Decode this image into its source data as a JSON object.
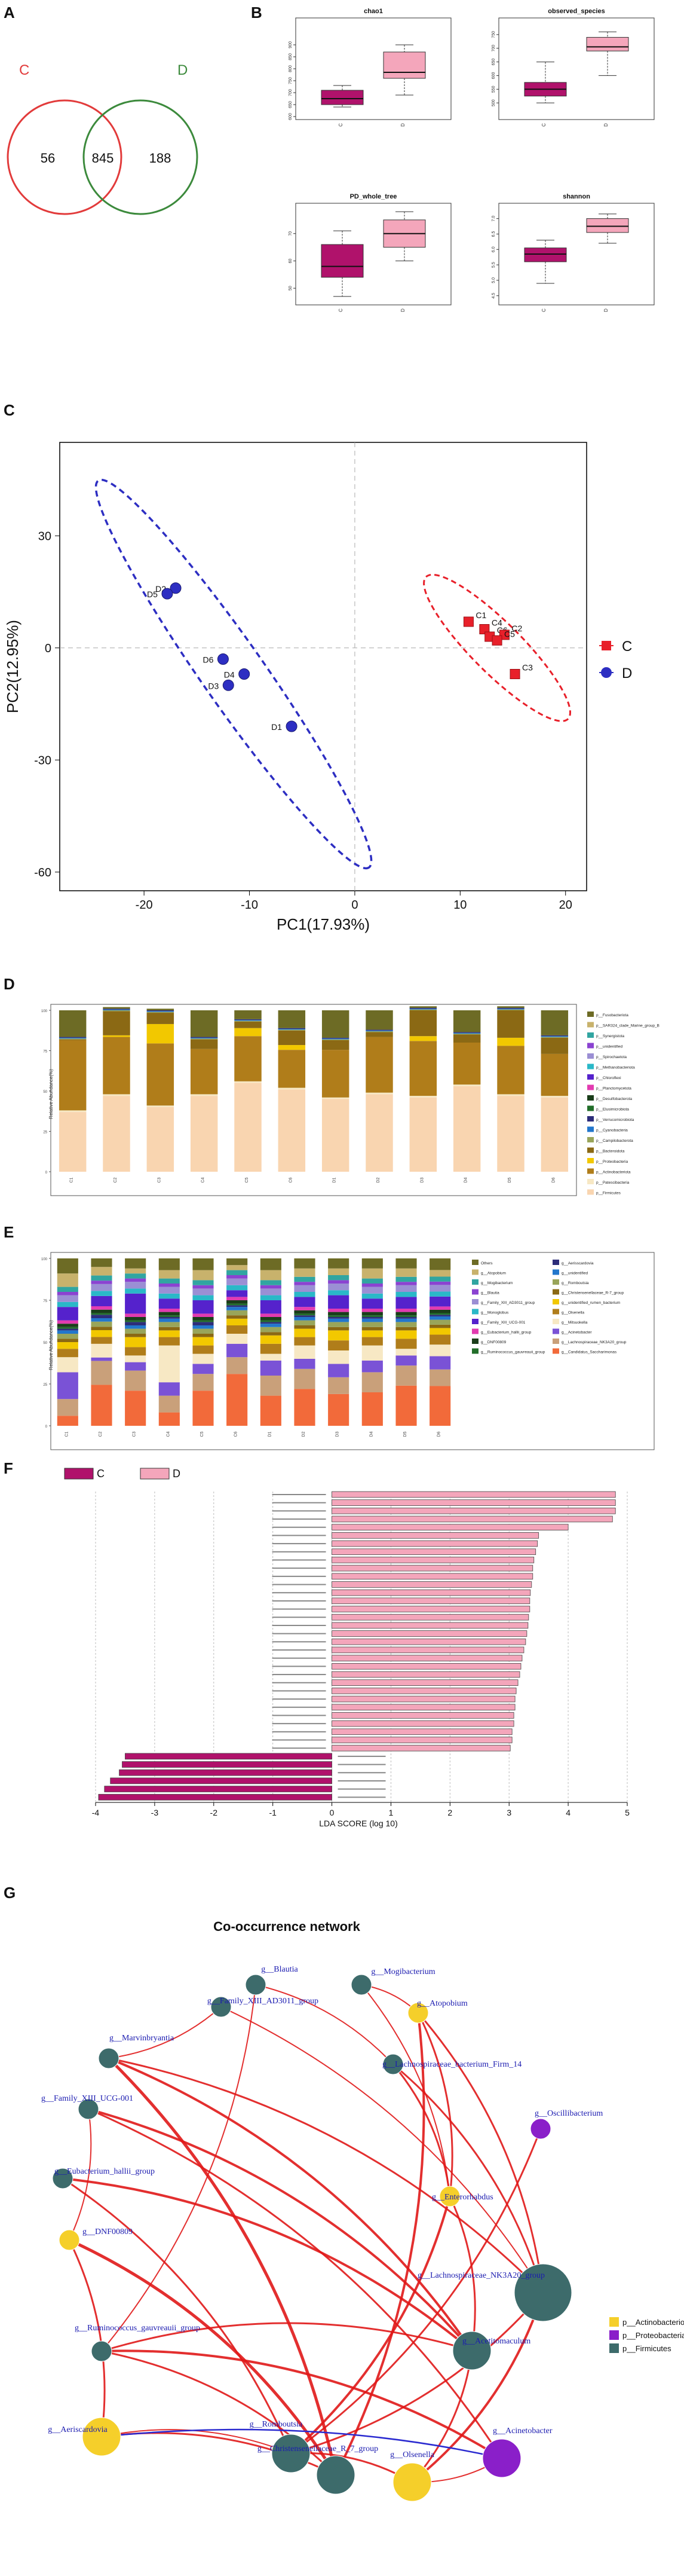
{
  "panels": {
    "A": {
      "letter": "A",
      "labels": {
        "left": "C",
        "right": "D"
      },
      "values": {
        "only_left": "56",
        "shared": "845",
        "only_right": "188"
      },
      "colors": {
        "left": "#e23b3b",
        "right": "#3c8a3c"
      }
    },
    "B": {
      "letter": "B",
      "colors": {
        "C": "#b0126b",
        "D": "#f4a6bb"
      },
      "plots": [
        {
          "title": "chao1",
          "groups": [
            "C",
            "D"
          ],
          "ylim": [
            600,
            1000
          ],
          "ticks": [
            "600",
            "650",
            "700",
            "750",
            "800",
            "850",
            "900"
          ],
          "boxes": [
            {
              "min": 640,
              "q1": 650,
              "med": 675,
              "q3": 710,
              "max": 730
            },
            {
              "min": 690,
              "q1": 760,
              "med": 785,
              "q3": 870,
              "max": 900
            }
          ]
        },
        {
          "title": "observed_species",
          "groups": [
            "C",
            "D"
          ],
          "ylim": [
            450,
            800
          ],
          "ticks": [
            "500",
            "550",
            "600",
            "650",
            "700",
            "750"
          ],
          "boxes": [
            {
              "min": 500,
              "q1": 525,
              "med": 550,
              "q3": 575,
              "max": 650
            },
            {
              "min": 600,
              "q1": 690,
              "med": 705,
              "q3": 740,
              "max": 760
            }
          ]
        },
        {
          "title": "PD_whole_tree",
          "groups": [
            "C",
            "D"
          ],
          "ylim": [
            45,
            80
          ],
          "ticks": [
            "50",
            "60",
            "70"
          ],
          "boxes": [
            {
              "min": 47,
              "q1": 54,
              "med": 58,
              "q3": 66,
              "max": 71
            },
            {
              "min": 60,
              "q1": 65,
              "med": 70,
              "q3": 75,
              "max": 78
            }
          ]
        },
        {
          "title": "shannon",
          "groups": [
            "C",
            "D"
          ],
          "ylim": [
            4.3,
            7.4
          ],
          "ticks": [
            "4.5",
            "5.0",
            "5.5",
            "6.0",
            "6.5",
            "7.0"
          ],
          "boxes": [
            {
              "min": 4.9,
              "q1": 5.6,
              "med": 5.85,
              "q3": 6.05,
              "max": 6.3
            },
            {
              "min": 6.2,
              "q1": 6.55,
              "med": 6.75,
              "q3": 7.0,
              "max": 7.15
            }
          ]
        }
      ]
    },
    "C": {
      "letter": "C",
      "xlabel": "PC1(17.93%)",
      "ylabel": "PC2(12.95%)",
      "xticks": [
        "-20",
        "-10",
        "0",
        "10",
        "20"
      ],
      "yticks": [
        "30",
        "0",
        "-30",
        "-60"
      ],
      "legend": [
        {
          "name": "C",
          "color": "#e8202a",
          "shape": "square"
        },
        {
          "name": "D",
          "color": "#2d2ec2",
          "shape": "circle"
        }
      ],
      "points_C": [
        {
          "label": "C1",
          "x": 10.8,
          "y": 7
        },
        {
          "label": "C4",
          "x": 12.3,
          "y": 5
        },
        {
          "label": "C6",
          "x": 12.8,
          "y": 3
        },
        {
          "label": "C2",
          "x": 14.2,
          "y": 3.5
        },
        {
          "label": "C5",
          "x": 13.5,
          "y": 2
        },
        {
          "label": "C3",
          "x": 15.2,
          "y": -7
        }
      ],
      "points_D": [
        {
          "label": "D2",
          "x": -17,
          "y": 16
        },
        {
          "label": "D5",
          "x": -17.8,
          "y": 14.5
        },
        {
          "label": "D6",
          "x": -12.5,
          "y": -3
        },
        {
          "label": "D4",
          "x": -10.5,
          "y": -7
        },
        {
          "label": "D3",
          "x": -12,
          "y": -10
        },
        {
          "label": "D1",
          "x": -6,
          "y": -21
        }
      ]
    },
    "D": {
      "letter": "D",
      "ylabel": "Relative Abundance(%)",
      "samples": [
        "C1",
        "C2",
        "C3",
        "C4",
        "C5",
        "C6",
        "D1",
        "D2",
        "D3",
        "D4",
        "D5",
        "D6"
      ],
      "legend": [
        {
          "name": "p__Fusobacteriota",
          "color": "#6d6b25"
        },
        {
          "name": "p__SAR324_clade_Marine_group_B",
          "color": "#c8b26c"
        },
        {
          "name": "p__Synergistota",
          "color": "#31a5a1"
        },
        {
          "name": "p__unidentified",
          "color": "#8b43d1"
        },
        {
          "name": "p__Spirochaetota",
          "color": "#9b8fd4"
        },
        {
          "name": "p__Methanobacteriota",
          "color": "#2ab8c8"
        },
        {
          "name": "p__Chloroflexi",
          "color": "#5522cc"
        },
        {
          "name": "p__Planctomycetota",
          "color": "#e23bb0"
        },
        {
          "name": "p__Desulfobacterota",
          "color": "#1a3d1a"
        },
        {
          "name": "p__Elusimicrobiota",
          "color": "#226e2a"
        },
        {
          "name": "p__Verrucomicrobiota",
          "color": "#2d2d7a"
        },
        {
          "name": "p__Cyanobacteria",
          "color": "#2277cc"
        },
        {
          "name": "p__Campilobacterota",
          "color": "#99a55a"
        },
        {
          "name": "p__Bacteroidota",
          "color": "#8b6914"
        },
        {
          "name": "p__Proteobacteria",
          "color": "#f2c800"
        },
        {
          "name": "p__Actinobacteriota",
          "color": "#b07d1a"
        },
        {
          "name": "p__Patescibacteria",
          "color": "#f7e8c4"
        },
        {
          "name": "p__Firmicutes",
          "color": "#f9d5b0"
        }
      ]
    },
    "E": {
      "letter": "E",
      "ylabel": "Relative Abundance(%)",
      "samples": [
        "C1",
        "C2",
        "C3",
        "C4",
        "C5",
        "C6",
        "D1",
        "D2",
        "D3",
        "D4",
        "D5",
        "D6"
      ],
      "legend": [
        {
          "name": "Others",
          "color": "#6d6b25"
        },
        {
          "name": "g__Atopobium",
          "color": "#c8b26c"
        },
        {
          "name": "g__Mogibacterium",
          "color": "#31a5a1"
        },
        {
          "name": "g__Blautia",
          "color": "#8b43d1"
        },
        {
          "name": "g__Family_XIII_AD3011_group",
          "color": "#9b8fd4"
        },
        {
          "name": "g__Monoglobus",
          "color": "#2ab8c8"
        },
        {
          "name": "g__Family_XIII_UCG-001",
          "color": "#5522cc"
        },
        {
          "name": "g__Eubacterium_hallii_group",
          "color": "#e23bb0"
        },
        {
          "name": "g__DNF00809",
          "color": "#1a3d1a"
        },
        {
          "name": "g__Ruminococcus_gauvreauii_group",
          "color": "#226e2a"
        },
        {
          "name": "g__Aerisscardovia",
          "color": "#2d2d7a"
        },
        {
          "name": "g__unidentified",
          "color": "#2277cc"
        },
        {
          "name": "g__Romboutsia",
          "color": "#99a55a"
        },
        {
          "name": "g__Christensenellaceae_R-7_group",
          "color": "#8b6914"
        },
        {
          "name": "g__unidentified_rumen_bacterium",
          "color": "#f2c800"
        },
        {
          "name": "g__Olsenella",
          "color": "#b07d1a"
        },
        {
          "name": "g__Mitsuokella",
          "color": "#f7e8c4"
        },
        {
          "name": "g__Acinetobacter",
          "color": "#7a52d6"
        },
        {
          "name": "g__Lachnospiraceae_NK3A20_group",
          "color": "#c9a07a"
        },
        {
          "name": "g__Candidatus_Saccharimonas",
          "color": "#f26a3a"
        }
      ]
    },
    "F": {
      "letter": "F",
      "legend": [
        {
          "name": "C",
          "color": "#b0126b"
        },
        {
          "name": "D",
          "color": "#f4a6bb"
        }
      ],
      "xlabel": "LDA SCORE (log 10)",
      "xticks": [
        "-4",
        "-3",
        "-2",
        "-1",
        "0",
        "1",
        "2",
        "3",
        "4",
        "5"
      ],
      "xlim": [
        -4,
        5
      ],
      "bars_D": [
        4.8,
        4.8,
        4.8,
        4.75,
        4.0,
        3.5,
        3.48,
        3.45,
        3.42,
        3.4,
        3.4,
        3.38,
        3.36,
        3.35,
        3.35,
        3.33,
        3.32,
        3.3,
        3.28,
        3.25,
        3.22,
        3.2,
        3.18,
        3.15,
        3.12,
        3.1,
        3.1,
        3.08,
        3.08,
        3.05,
        3.05,
        3.02
      ],
      "bars_C": [
        -3.5,
        -3.55,
        -3.6,
        -3.75,
        -3.85,
        -3.95
      ]
    },
    "G": {
      "letter": "G",
      "title": "Co-occurrence network",
      "legend": [
        {
          "name": "p__Actinobacteriota",
          "color": "#f5cf2a"
        },
        {
          "name": "p__Proteobacteria",
          "color": "#8a1fc9"
        },
        {
          "name": "p__Firmicutes",
          "color": "#3d6b6b"
        }
      ],
      "nodes": [
        {
          "name": "g__Blautia",
          "phylum": "Firmicutes",
          "size": "small"
        },
        {
          "name": "g__Mogibacterium",
          "phylum": "Firmicutes",
          "size": "small"
        },
        {
          "name": "g__Family_XIII_AD3011_group",
          "phylum": "Firmicutes",
          "size": "small"
        },
        {
          "name": "g__Atopobium",
          "phylum": "Actinobacteriota",
          "size": "small"
        },
        {
          "name": "g__Marvinbryantia",
          "phylum": "Firmicutes",
          "size": "small"
        },
        {
          "name": "g__Lachnospiraceae_bacterium_Firm_14",
          "phylum": "Firmicutes",
          "size": "small"
        },
        {
          "name": "g__Family_XIII_UCG-001",
          "phylum": "Firmicutes",
          "size": "small"
        },
        {
          "name": "g__Oscillibacterium",
          "phylum": "Proteobacteria",
          "size": "small"
        },
        {
          "name": "g__Eubacterium_hallii_group",
          "phylum": "Firmicutes",
          "size": "small"
        },
        {
          "name": "g__Enterorhabdus",
          "phylum": "Actinobacteriota",
          "size": "small"
        },
        {
          "name": "g__DNF00809",
          "phylum": "Actinobacteriota",
          "size": "small"
        },
        {
          "name": "g__Lachnospiraceae_NK3A20_group",
          "phylum": "Firmicutes",
          "size": "large"
        },
        {
          "name": "g__Ruminococcus_gauvreauii_group",
          "phylum": "Firmicutes",
          "size": "small"
        },
        {
          "name": "g__Acetitomaculum",
          "phylum": "Firmicutes",
          "size": "medium"
        },
        {
          "name": "g__Aeriscardovia",
          "phylum": "Actinobacteriota",
          "size": "medium"
        },
        {
          "name": "g__Acinetobacter",
          "phylum": "Proteobacteria",
          "size": "medium"
        },
        {
          "name": "g__Romboutsia",
          "phylum": "Firmicutes",
          "size": "medium"
        },
        {
          "name": "g__Christensenellaceae_R_7_group",
          "phylum": "Firmicutes",
          "size": "medium"
        },
        {
          "name": "g__Olsenella",
          "phylum": "Actinobacteriota",
          "size": "medium"
        }
      ]
    }
  }
}
